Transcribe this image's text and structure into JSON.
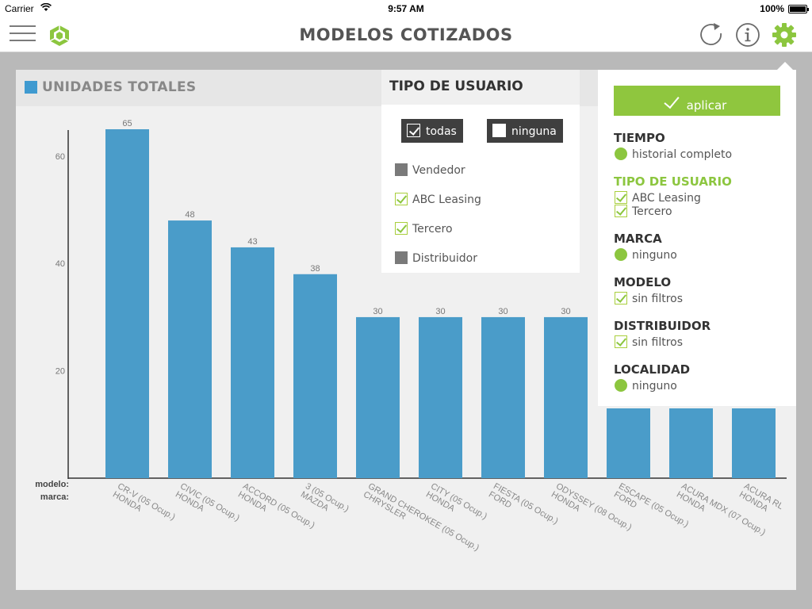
{
  "status_bar": {
    "carrier": "Carrier",
    "time": "9:57 AM",
    "battery": "100%"
  },
  "navbar": {
    "title": "MODELOS COTIZADOS",
    "icons": [
      "menu-icon",
      "logo-icon",
      "refresh-icon",
      "info-icon",
      "gear-icon"
    ]
  },
  "panel": {
    "title": "UNIDADES TOTALES"
  },
  "colors": {
    "bar": "#4a9cc9",
    "accent_green": "#8cc63f",
    "dark_chip": "#3f3f3f"
  },
  "chart_data": {
    "type": "bar",
    "title": "UNIDADES TOTALES",
    "row_labels": {
      "modelo": "modelo:",
      "marca": "marca:"
    },
    "categories": [
      {
        "modelo": "CR-V (05 Ocup.)",
        "marca": "HONDA"
      },
      {
        "modelo": "CIVIC (05 Ocup.)",
        "marca": "HONDA"
      },
      {
        "modelo": "ACCORD (05 Ocup.)",
        "marca": "HONDA"
      },
      {
        "modelo": "3 (05 Ocup.)",
        "marca": "MAZDA"
      },
      {
        "modelo": "GRAND CHEROKEE (05 Ocup.)",
        "marca": "CHRYSLER"
      },
      {
        "modelo": "CITY (05 Ocup.)",
        "marca": "HONDA"
      },
      {
        "modelo": "FIESTA (05 Ocup.)",
        "marca": "FORD"
      },
      {
        "modelo": "ODYSSEY (08 Ocup.)",
        "marca": "HONDA"
      },
      {
        "modelo": "ESCAPE (05 Ocup.)",
        "marca": "FORD"
      },
      {
        "modelo": "ACURA MDX (07 Ocup.)",
        "marca": "HONDA"
      },
      {
        "modelo": "ACURA RL",
        "marca": "HONDA"
      }
    ],
    "values": [
      65,
      48,
      43,
      38,
      30,
      30,
      30,
      30,
      13,
      13,
      13
    ],
    "data_labels": [
      "65",
      "48",
      "43",
      "38",
      "30",
      "30",
      "30",
      "30",
      "",
      "",
      ""
    ],
    "yticks": [
      20,
      40,
      60
    ],
    "ylim": [
      0,
      65
    ],
    "grid": false,
    "legend": "top-left"
  },
  "user_filter": {
    "title": "TIPO DE USUARIO",
    "all_label": "todas",
    "none_label": "ninguna",
    "options": [
      {
        "label": "Vendedor",
        "checked": false
      },
      {
        "label": "ABC Leasing",
        "checked": true
      },
      {
        "label": "Tercero",
        "checked": true
      },
      {
        "label": "Distribuidor",
        "checked": false
      }
    ]
  },
  "settings": {
    "apply_label": "aplicar",
    "sections": [
      {
        "title": "TIEMPO",
        "values": [
          "historial completo"
        ],
        "marker": "dot",
        "active": false
      },
      {
        "title": "TIPO DE USUARIO",
        "values": [
          "ABC Leasing",
          "Tercero"
        ],
        "marker": "check",
        "active": true
      },
      {
        "title": "MARCA",
        "values": [
          "ninguno"
        ],
        "marker": "dot",
        "active": false
      },
      {
        "title": "MODELO",
        "values": [
          "sin filtros"
        ],
        "marker": "check",
        "active": false
      },
      {
        "title": "DISTRIBUIDOR",
        "values": [
          "sin filtros"
        ],
        "marker": "check",
        "active": false
      },
      {
        "title": "LOCALIDAD",
        "values": [
          "ninguno"
        ],
        "marker": "dot",
        "active": false
      }
    ]
  }
}
